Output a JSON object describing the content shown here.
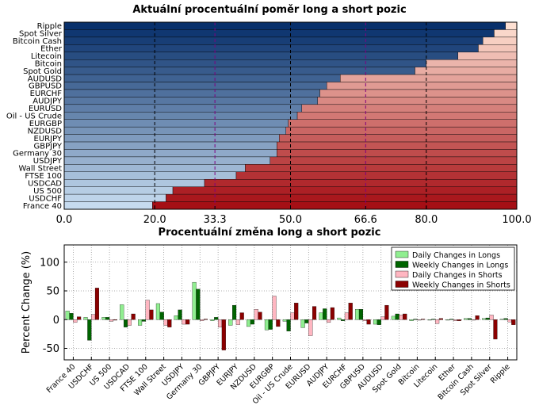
{
  "chart_data": [
    {
      "type": "bar",
      "orientation": "horizontal",
      "stacked": true,
      "title": "Aktuální procentuální poměr long a short pozic",
      "categories": [
        "Ripple",
        "Spot Silver",
        "Bitcoin Cash",
        "Ether",
        "Litecoin",
        "Bitcoin",
        "Spot Gold",
        "AUDUSD",
        "GBPUSD",
        "EURCHF",
        "AUDJPY",
        "EURUSD",
        "Oil - US Crude",
        "EURGBP",
        "NZDUSD",
        "EURJPY",
        "GBPJPY",
        "Germany 30",
        "USDJPY",
        "Wall Street",
        "FTSE 100",
        "USDCAD",
        "US 500",
        "USDCHF",
        "France 40"
      ],
      "long_values": [
        97.5,
        95,
        92.5,
        91.5,
        87,
        80,
        77.5,
        61,
        58,
        56.5,
        56,
        52.5,
        51.5,
        49.5,
        49,
        47.5,
        47,
        47,
        45.5,
        40,
        38,
        31,
        24,
        22.5,
        19.5
      ],
      "xlim": [
        0,
        100
      ],
      "xticks": [
        0.0,
        20.0,
        33.3,
        50.0,
        66.6,
        80.0,
        100.0
      ],
      "xtick_labels": [
        "0.0",
        "20.0",
        "33.3",
        "50.0",
        "66.6",
        "80.0",
        "100.0"
      ],
      "highlight_ticks": [
        33.3,
        66.6
      ],
      "highlight_color": "#800080",
      "long_colors": {
        "light": "#c6dbef",
        "dark": "#08306b"
      },
      "short_colors": {
        "light": "#fee0d2",
        "dark": "#a50f15"
      }
    },
    {
      "type": "bar",
      "title": "Procentuální změna long a short pozic",
      "ylabel": "Percent Change (%)",
      "ylim": [
        -70,
        130
      ],
      "yticks": [
        -50,
        0,
        50,
        100
      ],
      "categories": [
        "France 40",
        "USDCHF",
        "US 500",
        "USDCAD",
        "FTSE 100",
        "Wall Street",
        "USDJPY",
        "Germany 30",
        "GBPJPY",
        "EURJPY",
        "NZDUSD",
        "EURGBP",
        "Oil - US Crude",
        "EURUSD",
        "AUDJPY",
        "EURCHF",
        "GBPUSD",
        "AUDUSD",
        "Spot Gold",
        "Bitcoin",
        "Litecoin",
        "Ether",
        "Bitcoin Cash",
        "Spot Silver",
        "Ripple"
      ],
      "series": [
        {
          "name": "Daily Changes in Longs",
          "color": "#90ee90",
          "values": [
            15,
            4,
            4,
            26,
            -10,
            28,
            7,
            65,
            -2,
            -10,
            -12,
            -18,
            -3,
            -14,
            12,
            3,
            18,
            -8,
            6,
            -2,
            -1,
            -1,
            2,
            2,
            1
          ]
        },
        {
          "name": "Weekly Changes in Longs",
          "color": "#006400",
          "values": [
            11,
            -36,
            4,
            -13,
            -3,
            13,
            17,
            53,
            4,
            25,
            -8,
            -17,
            -20,
            -6,
            19,
            -2,
            18,
            -9,
            10,
            1,
            1,
            1,
            2,
            3,
            2
          ]
        },
        {
          "name": "Daily Changes in Shorts",
          "color": "#ffb6c1",
          "values": [
            -5,
            9,
            -3,
            -10,
            34,
            -10,
            -8,
            -2,
            -13,
            -9,
            18,
            41,
            12,
            -28,
            -5,
            12,
            -2,
            5,
            8,
            -1,
            -7,
            -2,
            -1,
            8,
            -4
          ]
        },
        {
          "name": "Weekly Changes in Shorts",
          "color": "#8b0000",
          "values": [
            5,
            55,
            -1,
            10,
            17,
            -13,
            -8,
            1,
            -53,
            12,
            13,
            -12,
            29,
            23,
            21,
            29,
            -8,
            25,
            10,
            1,
            2,
            -2,
            7,
            -34,
            -9
          ]
        }
      ],
      "legend_position": "upper-right"
    }
  ]
}
